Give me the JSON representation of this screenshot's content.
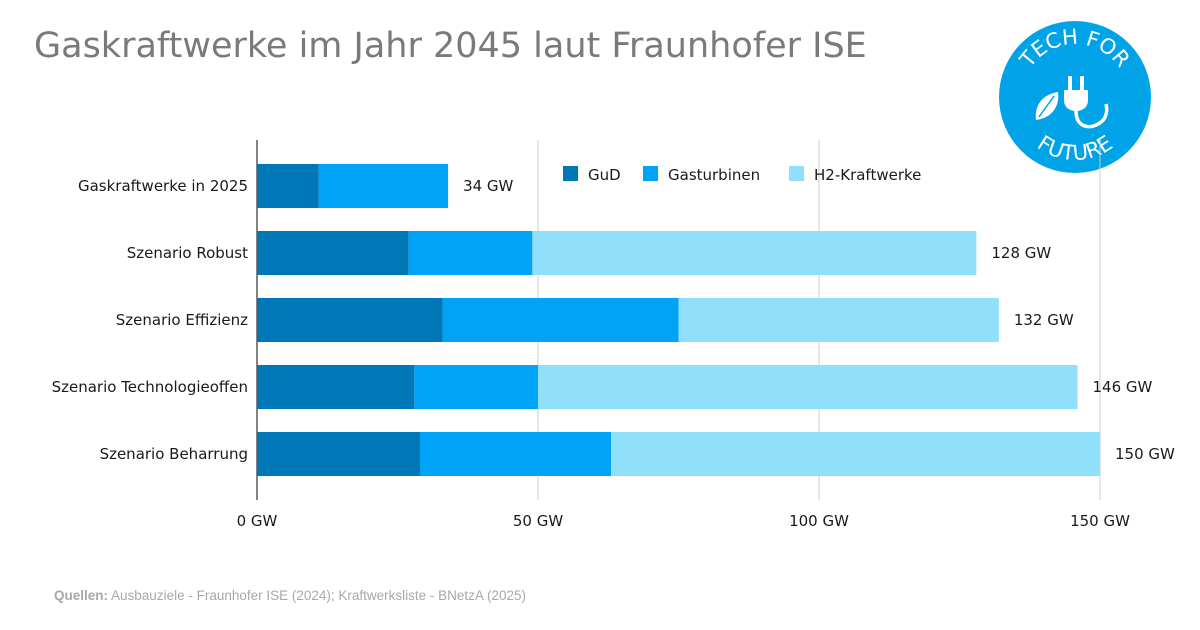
{
  "title": "Gaskraftwerke im Jahr 2045 laut Fraunhofer ISE",
  "logo": {
    "text_top": "TECH FOR",
    "text_bottom": "FUTURE",
    "icon": "plug-leaf-icon",
    "color": "#00a3e8"
  },
  "source": {
    "label": "Quellen:",
    "text": "Ausbauziele - Fraunhofer ISE (2024); Kraftwerksliste - BNetzA (2025)"
  },
  "colors": {
    "gud": "#0077b6",
    "gasturbinen": "#00a3f5",
    "h2": "#90e0fb",
    "grid": "#cccccc",
    "axis": "#333333"
  },
  "chart_data": {
    "type": "bar",
    "orientation": "horizontal",
    "stacked": true,
    "title": "Gaskraftwerke im Jahr 2045 laut Fraunhofer ISE",
    "categories": [
      "Gaskraftwerke in 2025",
      "Szenario Robust",
      "Szenario Effizienz",
      "Szenario Technologieoffen",
      "Szenario Beharrung"
    ],
    "series": [
      {
        "name": "GuD",
        "color": "#0077b6",
        "values": [
          11,
          27,
          33,
          28,
          29
        ]
      },
      {
        "name": "Gasturbinen",
        "color": "#00a3f5",
        "values": [
          23,
          22,
          42,
          22,
          34
        ]
      },
      {
        "name": "H2-Kraftwerke",
        "color": "#90e0fb",
        "values": [
          0,
          79,
          57,
          96,
          87
        ]
      }
    ],
    "totals_labels": [
      "34 GW",
      "128 GW",
      "132 GW",
      "146 GW",
      "150 GW"
    ],
    "xlim": [
      0,
      150
    ],
    "x_ticks": [
      0,
      50,
      100,
      150
    ],
    "x_tick_labels": [
      "0 GW",
      "50 GW",
      "100 GW",
      "150 GW"
    ],
    "grid": true,
    "legend_position": "top"
  }
}
